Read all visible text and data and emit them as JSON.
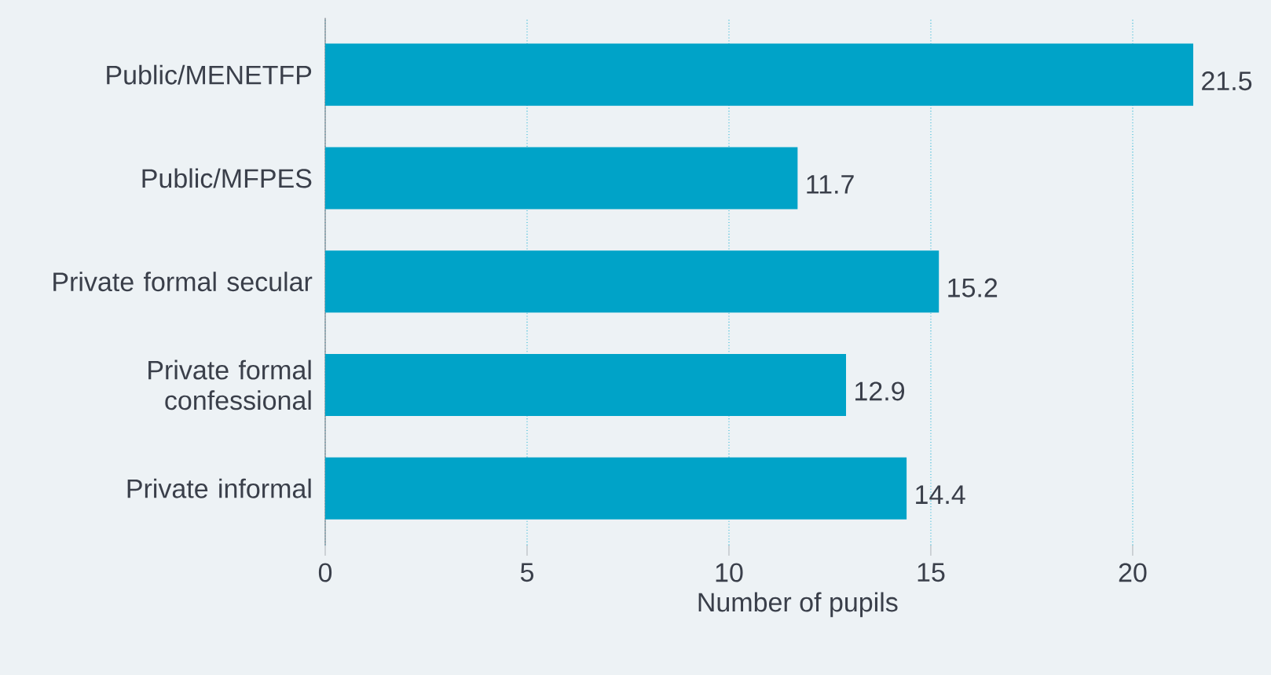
{
  "chart_data": {
    "type": "bar",
    "orientation": "horizontal",
    "categories": [
      "Public/MENETFP",
      "Public/MFPES",
      "Private formal secular",
      "Private formal confessional",
      "Private informal"
    ],
    "values": [
      21.5,
      11.7,
      15.2,
      12.9,
      14.4
    ],
    "value_labels": [
      "21.5",
      "11.7",
      "15.2",
      "12.9",
      "14.4"
    ],
    "color": "#00a3c8",
    "xlabel": "Number of pupils",
    "xlim": [
      0,
      23.4
    ],
    "xticks": [
      0,
      5,
      10,
      15,
      20
    ],
    "grid": "x"
  }
}
